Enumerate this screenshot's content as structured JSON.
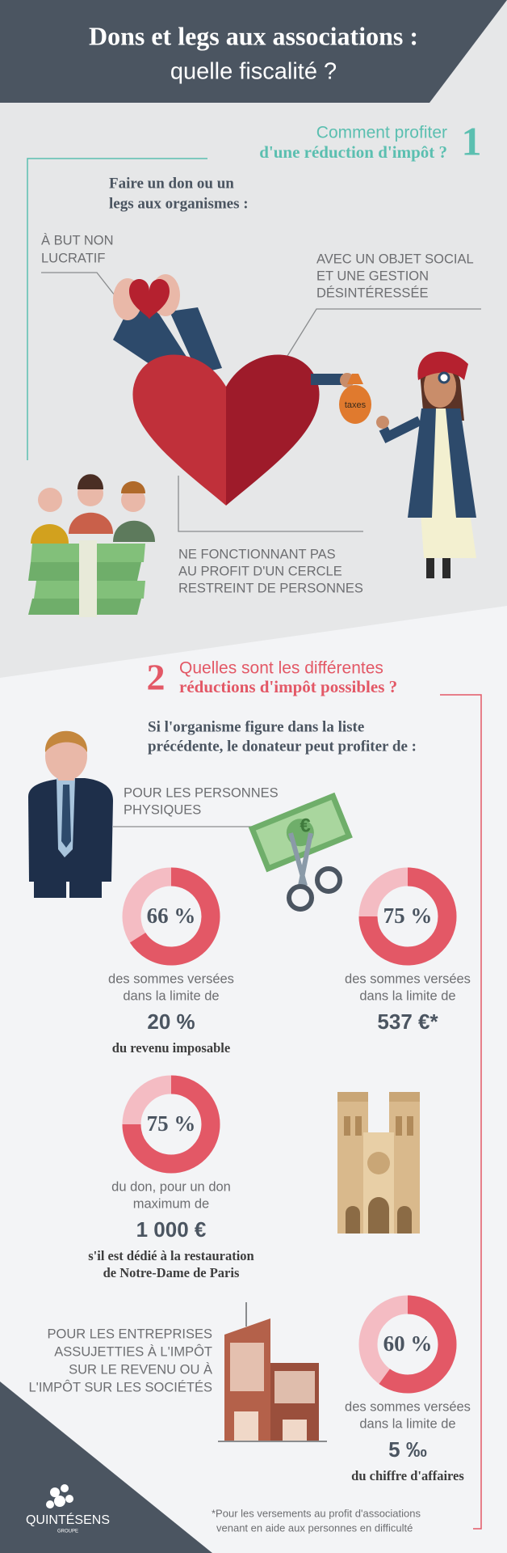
{
  "header": {
    "title_line1": "Dons et legs aux associations :",
    "title_line2": "quelle fiscalité ?"
  },
  "section1": {
    "number": "1",
    "heading_line1": "Comment profiter",
    "heading_line2": "d'une réduction d'impôt ?",
    "intro": [
      "Faire un don ou un",
      "legs aux organismes :"
    ],
    "criteria": [
      [
        "À BUT NON",
        "LUCRATIF"
      ],
      [
        "AVEC UN OBJET SOCIAL",
        "ET UNE GESTION",
        "DÉSINTÉRESSÉE"
      ],
      [
        "NE FONCTIONNANT PAS",
        "AU PROFIT D'UN CERCLE",
        "RESTREINT DE PERSONNES"
      ]
    ],
    "bag_label": "taxes"
  },
  "section2": {
    "number": "2",
    "heading_line1": "Quelles sont les différentes",
    "heading_line2": "réductions d'impôt possibles ?",
    "intro": [
      "Si l'organisme figure dans la liste",
      "précédente, le donateur peut profiter de :"
    ],
    "individuals_label": [
      "POUR LES PERSONNES",
      "PHYSIQUES"
    ],
    "bill_symbol": "€",
    "reductions": [
      {
        "rate": {
          "value": 66,
          "label": "66 %"
        },
        "text": [
          "des sommes versées",
          "dans la limite de"
        ],
        "limit": "20 %",
        "limit_note": [
          "du revenu imposable"
        ]
      },
      {
        "rate": {
          "value": 75,
          "label": "75 %"
        },
        "text": [
          "des sommes versées",
          "dans la limite de"
        ],
        "limit": "537 €*",
        "limit_note": []
      },
      {
        "rate": {
          "value": 75,
          "label": "75 %"
        },
        "text": [
          "du don, pour un don",
          "maximum de"
        ],
        "limit": "1 000 €",
        "limit_note": [
          "s'il est dédié à la restauration",
          "de Notre-Dame de Paris"
        ]
      },
      {
        "rate": {
          "value": 60,
          "label": "60 %"
        },
        "text": [
          "des sommes versées",
          "dans la limite de"
        ],
        "limit": "5 ‰",
        "limit_note": [
          "du chiffre d'affaires"
        ]
      }
    ],
    "companies_label": [
      "POUR LES ENTREPRISES",
      "ASSUJETTIES À L'IMPÔT",
      "SUR LE REVENU OU À",
      "L'IMPÔT SUR LES SOCIÉTÉS"
    ]
  },
  "footnote": [
    "*Pour les versements au profit d'associations",
    "venant en aide aux personnes en difficulté"
  ],
  "logo": {
    "name": "QUINTÉSENS",
    "sub": "GROUPE"
  }
}
